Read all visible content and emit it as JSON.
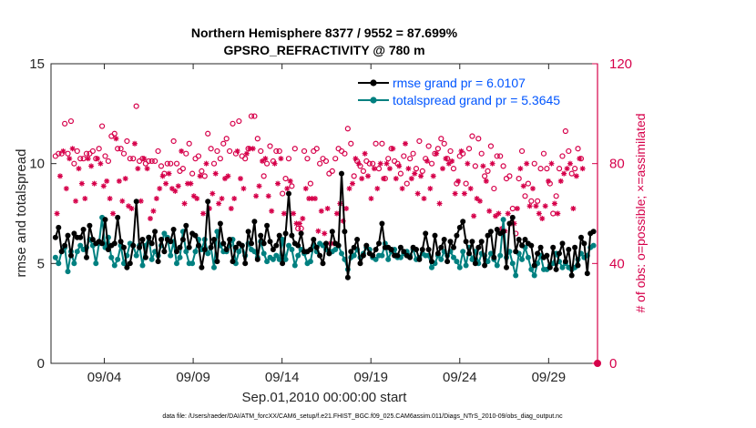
{
  "chart_data": {
    "type": "line",
    "title": [
      "Northern Hemisphere 8377 / 9552 = 87.699%",
      "GPSRO_REFRACTIVITY @ 780 m"
    ],
    "xlabel": "Sep.01,2010 00:00:00 start",
    "ylabel": "rmse and totalspread",
    "y2label": "# of obs: o=possible; ×=assimilated",
    "footnote": "data file: /Users/raeder/DAI/ATM_forcXX/CAM6_setup/f.e21.FHIST_BGC.f09_025.CAM6assim.011/Diags_NTrS_2010-09/obs_diag_output.nc",
    "xlim": [
      1,
      31.75
    ],
    "ylim": [
      0,
      15
    ],
    "y2lim": [
      0,
      120
    ],
    "x_tick_positions": [
      4,
      9,
      14,
      19,
      24,
      29
    ],
    "x_tick_labels": [
      "09/04",
      "09/09",
      "09/14",
      "09/19",
      "09/24",
      "09/29"
    ],
    "y_ticks": [
      0,
      5,
      10,
      15
    ],
    "y2_ticks": [
      0,
      40,
      80,
      120
    ],
    "colors": {
      "rmse": "#000000",
      "spread": "#008080",
      "obs": "#d6004a",
      "legend_text": "#0055ff"
    },
    "series": [
      {
        "name": "rmse grand pr = 6.0107",
        "color": "#000000",
        "marker": "o",
        "values": [
          6.3,
          6.8,
          5.6,
          5.9,
          6.4,
          5.4,
          6.5,
          6.3,
          6.3,
          6.7,
          5.3,
          6.9,
          6.2,
          6.0,
          6.1,
          6.0,
          7.2,
          5.7,
          5.9,
          6.0,
          7.3,
          6.1,
          5.8,
          4.8,
          5.0,
          5.9,
          8.1,
          5.8,
          6.2,
          5.3,
          6.3,
          6.0,
          6.6,
          5.1,
          6.2,
          5.6,
          6.2,
          6.1,
          6.7,
          5.6,
          5.8,
          6.2,
          6.9,
          5.8,
          6.5,
          6.4,
          5.9,
          4.8,
          5.7,
          8.1,
          5.8,
          6.2,
          5.1,
          7.0,
          6.0,
          5.7,
          6.2,
          5.1,
          5.8,
          6.0,
          5.9,
          5.0,
          6.6,
          6.0,
          7.1,
          5.2,
          6.4,
          6.0,
          6.9,
          6.1,
          5.7,
          5.9,
          6.4,
          5.0,
          6.5,
          8.5,
          6.4,
          6.0,
          5.9,
          6.5,
          5.6,
          5.6,
          5.7,
          6.2,
          5.8,
          5.4,
          5.0,
          6.0,
          5.5,
          6.6,
          6.0,
          5.9,
          9.5,
          6.6,
          4.3,
          5.6,
          5.8,
          6.2,
          5.0,
          5.4,
          5.9,
          5.5,
          5.4,
          5.7,
          6.0,
          7.0,
          5.8,
          5.8,
          5.7,
          5.4,
          5.4,
          5.8,
          5.6,
          5.4,
          5.3,
          5.8,
          5.7,
          5.2,
          5.7,
          6.5,
          5.7,
          5.1,
          6.4,
          5.5,
          5.8,
          6.2,
          5.1,
          6.1,
          5.8,
          6.4,
          6.8,
          7.1,
          6.1,
          5.5,
          6.1,
          5.0,
          5.8,
          6.1,
          4.9,
          6.4,
          6.6,
          5.3,
          6.7,
          6.5,
          6.6,
          4.8,
          7.0,
          7.3,
          5.6,
          6.2,
          5.9,
          6.2,
          6.0,
          5.9,
          4.9,
          5.5,
          5.8,
          5.3,
          5.4,
          4.8,
          5.8,
          4.7,
          5.5,
          6.0,
          5.1,
          5.7,
          4.4,
          5.8,
          4.9,
          6.3,
          6.0,
          4.5,
          6.5,
          6.6
        ]
      },
      {
        "name": "totalspread grand pr = 5.3645",
        "color": "#008080",
        "marker": "o",
        "values": [
          5.3,
          5.0,
          5.6,
          5.8,
          4.6,
          5.6,
          5.0,
          5.6,
          5.9,
          5.7,
          5.8,
          6.2,
          5.9,
          5.0,
          6.0,
          7.3,
          5.8,
          6.3,
          5.3,
          4.9,
          5.2,
          5.9,
          5.0,
          5.4,
          6.0,
          5.9,
          5.4,
          5.9,
          4.9,
          5.9,
          6.3,
          5.2,
          5.6,
          5.4,
          5.9,
          6.5,
          6.3,
          5.4,
          6.1,
          5.0,
          5.3,
          6.6,
          5.6,
          5.0,
          5.0,
          5.6,
          6.2,
          5.7,
          6.2,
          5.5,
          5.8,
          4.8,
          6.6,
          5.9,
          5.6,
          5.6,
          5.9,
          6.2,
          5.0,
          5.6,
          5.9,
          5.4,
          6.0,
          5.7,
          5.6,
          5.3,
          6.1,
          5.5,
          5.1,
          5.3,
          5.2,
          5.4,
          5.2,
          6.2,
          5.2,
          5.9,
          5.7,
          4.9,
          5.4,
          5.7,
          5.5,
          5.0,
          5.1,
          5.9,
          5.6,
          6.0,
          5.9,
          5.7,
          5.5,
          5.6,
          5.7,
          5.9,
          5.5,
          5.2,
          4.7,
          5.3,
          5.4,
          5.7,
          5.3,
          5.5,
          5.8,
          5.7,
          5.3,
          5.2,
          5.4,
          5.4,
          6.0,
          5.2,
          5.6,
          5.7,
          5.3,
          5.3,
          5.5,
          5.6,
          5.4,
          5.7,
          5.2,
          5.3,
          5.5,
          5.4,
          5.4,
          4.8,
          5.0,
          5.4,
          5.2,
          5.6,
          5.4,
          5.6,
          5.3,
          5.1,
          4.8,
          5.6,
          4.9,
          5.8,
          5.2,
          5.6,
          5.0,
          5.5,
          5.4,
          5.1,
          5.5,
          5.2,
          4.9,
          5.4,
          7.2,
          5.3,
          5.6,
          5.0,
          4.4,
          5.5,
          5.2,
          5.8,
          5.3,
          4.7,
          4.4,
          5.0,
          5.4,
          4.7,
          4.7,
          4.9,
          5.0,
          5.5,
          5.1,
          4.8,
          5.0,
          4.8,
          4.7,
          4.8,
          5.2,
          5.5,
          5.3,
          5.4,
          5.8,
          5.9
        ]
      },
      {
        "name": "obs possible",
        "color": "#d6004a",
        "marker": "circle-open",
        "axis": "right",
        "values": [
          83,
          84,
          84,
          96,
          84,
          97,
          80,
          85,
          82,
          82,
          84,
          84,
          85,
          82,
          86,
          95,
          83,
          81,
          91,
          92,
          86,
          86,
          84,
          89,
          82,
          82,
          103,
          81,
          82,
          80,
          81,
          81,
          81,
          85,
          79,
          76,
          80,
          80,
          89,
          80,
          77,
          78,
          84,
          88,
          76,
          82,
          83,
          77,
          75,
          92,
          86,
          80,
          85,
          82,
          88,
          90,
          85,
          96,
          84,
          97,
          83,
          82,
          86,
          99,
          99,
          90,
          85,
          75,
          80,
          87,
          81,
          85,
          85,
          68,
          74,
          82,
          71,
          86,
          54,
          54,
          85,
          82,
          72,
          85,
          86,
          80,
          82,
          81,
          76,
          77,
          82,
          86,
          85,
          84,
          94,
          88,
          75,
          81,
          79,
          77,
          81,
          80,
          80,
          88,
          78,
          88,
          74,
          82,
          86,
          81,
          80,
          76,
          83,
          72,
          82,
          84,
          78,
          89,
          77,
          82,
          87,
          80,
          84,
          86,
          90,
          88,
          82,
          85,
          78,
          72,
          83,
          84,
          72,
          86,
          91,
          79,
          90,
          84,
          75,
          77,
          87,
          70,
          83,
          83,
          79,
          74,
          75,
          62,
          52,
          74,
          85,
          67,
          72,
          65,
          80,
          65,
          78,
          84,
          78,
          72,
          60,
          67,
          78,
          83,
          93,
          85,
          76,
          78,
          86,
          82
        ]
      },
      {
        "name": "obs assimilated",
        "color": "#d6004a",
        "marker": "asterisk",
        "axis": "right",
        "values": [
          60,
          75,
          85,
          70,
          82,
          86,
          65,
          78,
          72,
          66,
          82,
          79,
          72,
          82,
          80,
          71,
          73,
          66,
          60,
          90,
          73,
          65,
          74,
          63,
          62,
          88,
          78,
          65,
          82,
          78,
          58,
          61,
          66,
          70,
          75,
          72,
          76,
          70,
          69,
          71,
          85,
          64,
          72,
          72,
          67,
          66,
          75,
          60,
          80,
          62,
          68,
          76,
          64,
          66,
          74,
          75,
          62,
          66,
          85,
          74,
          70,
          84,
          86,
          86,
          67,
          71,
          81,
          82,
          67,
          61,
          80,
          72,
          82,
          60,
          70,
          73,
          60,
          56,
          56,
          58,
          70,
          66,
          66,
          66,
          53,
          61,
          52,
          62,
          48,
          48,
          60,
          64,
          57,
          62,
          70,
          72,
          82,
          80,
          74,
          84,
          75,
          66,
          78,
          70,
          80,
          74,
          80,
          78,
          86,
          74,
          79,
          70,
          88,
          78,
          74,
          76,
          68,
          75,
          66,
          81,
          70,
          75,
          84,
          64,
          78,
          82,
          80,
          81,
          68,
          73,
          85,
          68,
          80,
          70,
          59,
          66,
          65,
          79,
          73,
          61,
          80,
          59,
          60,
          54,
          53,
          60,
          56,
          56,
          62,
          78,
          71,
          80,
          63,
          70,
          63,
          60,
          58,
          63,
          73,
          80,
          64,
          60,
          73,
          76,
          78,
          80,
          62,
          75,
          82,
          78
        ]
      }
    ],
    "legend": {
      "location": "top-right",
      "entries": [
        "rmse grand pr = 6.0107",
        "totalspread grand pr = 5.3645"
      ]
    }
  }
}
